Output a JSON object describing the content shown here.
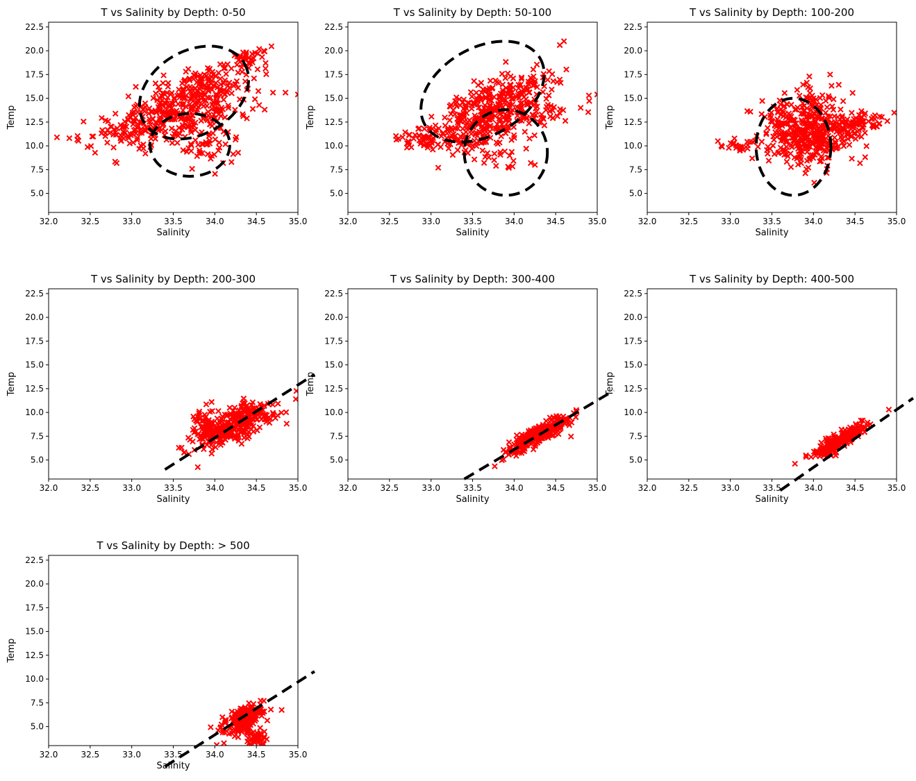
{
  "figure": {
    "marker_color": "#ff0000",
    "annotation_color": "#000000",
    "background": "#ffffff"
  },
  "chart_data": [
    {
      "type": "scatter",
      "title": "T vs Salinity by Depth:  0-50",
      "xlabel": "Salinity",
      "ylabel": "Temp",
      "xlim": [
        32.0,
        35.0
      ],
      "ylim": [
        3.0,
        23.0
      ],
      "xticks": [
        "32.0",
        "32.5",
        "33.0",
        "33.5",
        "34.0",
        "34.5",
        "35.0"
      ],
      "yticks": [
        "5.0",
        "7.5",
        "10.0",
        "12.5",
        "15.0",
        "17.5",
        "20.0",
        "22.5"
      ],
      "grid": false,
      "marker": "x",
      "clusters": [
        {
          "center": [
            33.6,
            13.3
          ],
          "spread": [
            0.4,
            1.6
          ],
          "corr": 0.2,
          "count": 260
        },
        {
          "center": [
            33.9,
            16.3
          ],
          "spread": [
            0.33,
            1.3
          ],
          "corr": 0.6,
          "count": 150
        },
        {
          "center": [
            33.0,
            11.6
          ],
          "spread": [
            0.3,
            0.8
          ],
          "corr": 0.3,
          "count": 80
        },
        {
          "center": [
            34.4,
            19.3
          ],
          "spread": [
            0.12,
            0.6
          ],
          "corr": 0.5,
          "count": 30
        },
        {
          "center": [
            33.9,
            10.0
          ],
          "spread": [
            0.2,
            1.0
          ],
          "corr": 0.0,
          "count": 30
        }
      ],
      "points": [
        [
          32.1,
          10.9
        ],
        [
          32.25,
          10.8
        ],
        [
          34.7,
          15.6
        ],
        [
          34.85,
          15.6
        ],
        [
          35.0,
          15.4
        ],
        [
          34.6,
          13.8
        ],
        [
          34.1,
          8.2
        ],
        [
          34.2,
          8.3
        ]
      ],
      "annotations": [
        {
          "kind": "ellipse",
          "center": [
            33.75,
            15.6
          ],
          "rx": 0.7,
          "ry": 4.4,
          "rotation_deg": -30
        },
        {
          "kind": "ellipse",
          "center": [
            33.7,
            10.1
          ],
          "rx": 0.48,
          "ry": 3.3,
          "rotation_deg": 0
        }
      ]
    },
    {
      "type": "scatter",
      "title": "T vs Salinity by Depth: 50-100",
      "xlabel": "Salinity",
      "ylabel": "Temp",
      "xlim": [
        32.0,
        35.0
      ],
      "ylim": [
        3.0,
        23.0
      ],
      "xticks": [
        "32.0",
        "32.5",
        "33.0",
        "33.5",
        "34.0",
        "34.5",
        "35.0"
      ],
      "yticks": [
        "5.0",
        "7.5",
        "10.0",
        "12.5",
        "15.0",
        "17.5",
        "20.0",
        "22.5"
      ],
      "grid": false,
      "marker": "x",
      "clusters": [
        {
          "center": [
            33.7,
            12.8
          ],
          "spread": [
            0.3,
            1.6
          ],
          "corr": 0.4,
          "count": 260
        },
        {
          "center": [
            33.9,
            15.5
          ],
          "spread": [
            0.3,
            1.3
          ],
          "corr": 0.6,
          "count": 130
        },
        {
          "center": [
            32.9,
            10.8
          ],
          "spread": [
            0.2,
            0.6
          ],
          "corr": 0.2,
          "count": 60
        },
        {
          "center": [
            34.3,
            13.3
          ],
          "spread": [
            0.25,
            0.6
          ],
          "corr": 0.2,
          "count": 40
        },
        {
          "center": [
            33.8,
            9.3
          ],
          "spread": [
            0.25,
            0.8
          ],
          "corr": 0.0,
          "count": 30
        }
      ],
      "points": [
        [
          34.6,
          21.0
        ],
        [
          34.55,
          20.6
        ],
        [
          34.9,
          15.3
        ],
        [
          35.0,
          15.4
        ],
        [
          34.8,
          14.0
        ],
        [
          34.2,
          8.2
        ],
        [
          34.25,
          8.0
        ]
      ],
      "annotations": [
        {
          "kind": "ellipse",
          "center": [
            33.62,
            15.7
          ],
          "rx": 0.8,
          "ry": 4.6,
          "rotation_deg": -30
        },
        {
          "kind": "ellipse",
          "center": [
            33.9,
            9.3
          ],
          "rx": 0.5,
          "ry": 4.5,
          "rotation_deg": 0
        }
      ]
    },
    {
      "type": "scatter",
      "title": "T vs Salinity by Depth: 100-200",
      "xlabel": "Salinity",
      "ylabel": "Temp",
      "xlim": [
        32.0,
        35.0
      ],
      "ylim": [
        3.0,
        23.0
      ],
      "xticks": [
        "32.0",
        "32.5",
        "33.0",
        "33.5",
        "34.0",
        "34.5",
        "35.0"
      ],
      "yticks": [
        "5.0",
        "7.5",
        "10.0",
        "12.5",
        "15.0",
        "17.5",
        "20.0",
        "22.5"
      ],
      "grid": false,
      "marker": "x",
      "clusters": [
        {
          "center": [
            33.9,
            11.0
          ],
          "spread": [
            0.25,
            1.7
          ],
          "corr": -0.1,
          "count": 360
        },
        {
          "center": [
            34.5,
            12.3
          ],
          "spread": [
            0.18,
            0.6
          ],
          "corr": 0.2,
          "count": 90
        },
        {
          "center": [
            33.85,
            14.5
          ],
          "spread": [
            0.3,
            1.0
          ],
          "corr": 0.2,
          "count": 60
        },
        {
          "center": [
            33.15,
            10.0
          ],
          "spread": [
            0.15,
            0.4
          ],
          "corr": 0.0,
          "count": 25
        }
      ],
      "points": [
        [
          34.2,
          17.5
        ],
        [
          33.95,
          17.3
        ],
        [
          32.85,
          10.5
        ],
        [
          32.9,
          9.9
        ]
      ],
      "annotations": [
        {
          "kind": "ellipse",
          "center": [
            33.76,
            9.9
          ],
          "rx": 0.45,
          "ry": 5.1,
          "rotation_deg": 0
        }
      ]
    },
    {
      "type": "scatter",
      "title": "T vs Salinity by Depth: 200-300",
      "xlabel": "Salinity",
      "ylabel": "Temp",
      "xlim": [
        32.0,
        35.0
      ],
      "ylim": [
        3.0,
        23.0
      ],
      "xticks": [
        "32.0",
        "32.5",
        "33.0",
        "33.5",
        "34.0",
        "34.5",
        "35.0"
      ],
      "yticks": [
        "5.0",
        "7.5",
        "10.0",
        "12.5",
        "15.0",
        "17.5",
        "20.0",
        "22.5"
      ],
      "grid": false,
      "marker": "x",
      "clusters": [
        {
          "center": [
            34.25,
            8.8
          ],
          "spread": [
            0.25,
            1.3
          ],
          "corr": 0.7,
          "count": 320
        },
        {
          "center": [
            33.9,
            8.5
          ],
          "spread": [
            0.08,
            0.9
          ],
          "corr": 0.0,
          "count": 60
        }
      ],
      "points": [],
      "annotations": [
        {
          "kind": "line",
          "from": [
            33.4,
            4.0
          ],
          "to": [
            35.2,
            14.0
          ]
        }
      ]
    },
    {
      "type": "scatter",
      "title": "T vs Salinity by Depth: 300-400",
      "xlabel": "Salinity",
      "ylabel": "Temp",
      "xlim": [
        32.0,
        35.0
      ],
      "ylim": [
        3.0,
        23.0
      ],
      "xticks": [
        "32.0",
        "32.5",
        "33.0",
        "33.5",
        "34.0",
        "34.5",
        "35.0"
      ],
      "yticks": [
        "5.0",
        "7.5",
        "10.0",
        "12.5",
        "15.0",
        "17.5",
        "20.0",
        "22.5"
      ],
      "grid": false,
      "marker": "x",
      "clusters": [
        {
          "center": [
            34.3,
            7.7
          ],
          "spread": [
            0.2,
            1.1
          ],
          "corr": 0.9,
          "count": 280
        }
      ],
      "points": [],
      "annotations": [
        {
          "kind": "line",
          "from": [
            33.4,
            3.0
          ],
          "to": [
            35.2,
            12.3
          ]
        }
      ]
    },
    {
      "type": "scatter",
      "title": "T vs Salinity by Depth: 400-500",
      "xlabel": "Salinity",
      "ylabel": "Temp",
      "xlim": [
        32.0,
        35.0
      ],
      "ylim": [
        3.0,
        23.0
      ],
      "xticks": [
        "32.0",
        "32.5",
        "33.0",
        "33.5",
        "34.0",
        "34.5",
        "35.0"
      ],
      "yticks": [
        "5.0",
        "7.5",
        "10.0",
        "12.5",
        "15.0",
        "17.5",
        "20.0",
        "22.5"
      ],
      "grid": false,
      "marker": "x",
      "clusters": [
        {
          "center": [
            34.3,
            7.0
          ],
          "spread": [
            0.16,
            0.9
          ],
          "corr": 0.9,
          "count": 250
        }
      ],
      "points": [],
      "annotations": [
        {
          "kind": "line",
          "from": [
            33.6,
            1.8
          ],
          "to": [
            35.2,
            11.5
          ]
        }
      ]
    },
    {
      "type": "scatter",
      "title": "T vs Salinity by Depth: > 500",
      "xlabel": "Salinity",
      "ylabel": "Temp",
      "xlim": [
        32.0,
        35.0
      ],
      "ylim": [
        3.0,
        23.0
      ],
      "xticks": [
        "32.0",
        "32.5",
        "33.0",
        "33.5",
        "34.0",
        "34.5",
        "35.0"
      ],
      "yticks": [
        "5.0",
        "7.5",
        "10.0",
        "12.5",
        "15.0",
        "17.5",
        "20.0",
        "22.5"
      ],
      "grid": false,
      "marker": "x",
      "clusters": [
        {
          "center": [
            34.35,
            5.8
          ],
          "spread": [
            0.12,
            0.8
          ],
          "corr": 0.6,
          "count": 220
        },
        {
          "center": [
            34.5,
            3.8
          ],
          "spread": [
            0.06,
            0.5
          ],
          "corr": 0.0,
          "count": 40
        }
      ],
      "points": [],
      "annotations": [
        {
          "kind": "line",
          "from": [
            33.4,
            0.8
          ],
          "to": [
            35.2,
            10.8
          ]
        }
      ]
    }
  ]
}
